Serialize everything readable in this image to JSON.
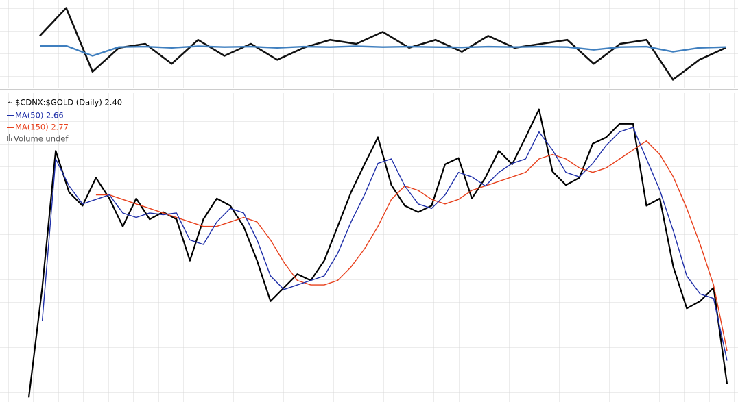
{
  "chart_data": [
    {
      "type": "line",
      "series": [
        {
          "name": null,
          "color": "#111111",
          "values": [
            0.3,
            1.0,
            -0.6,
            0.0,
            0.1,
            -0.4,
            0.2,
            -0.2,
            0.1,
            -0.3,
            0.0,
            0.2,
            0.1,
            0.4,
            0.0,
            0.2,
            -0.1,
            0.3,
            0.0,
            0.1,
            0.2,
            -0.4,
            0.1,
            0.2,
            -0.8,
            -0.3,
            0.0
          ]
        },
        {
          "name": null,
          "color": "#3f7fbf",
          "values": [
            0.05,
            0.05,
            -0.2,
            0.02,
            0.03,
            0.0,
            0.04,
            0.02,
            0.03,
            0.0,
            0.03,
            0.02,
            0.04,
            0.02,
            0.03,
            0.02,
            0.01,
            0.03,
            0.02,
            0.03,
            0.02,
            -0.05,
            0.02,
            0.03,
            -0.1,
            0.0,
            0.02
          ]
        }
      ],
      "ylim": [
        -1,
        1.2
      ]
    },
    {
      "type": "line",
      "title": "$CDNX:$GOLD (Daily) 2.40",
      "series": [
        {
          "name": "MA(50) 2.66",
          "color": "#1f2fa8",
          "values": [
            null,
            3.1,
            4.9,
            4.6,
            4.4,
            4.45,
            4.5,
            4.3,
            4.25,
            4.3,
            4.28,
            4.3,
            4.0,
            3.95,
            4.2,
            4.35,
            4.3,
            4.0,
            3.6,
            3.45,
            3.5,
            3.55,
            3.6,
            3.85,
            4.2,
            4.5,
            4.85,
            4.9,
            4.6,
            4.4,
            4.35,
            4.5,
            4.75,
            4.7,
            4.6,
            4.75,
            4.85,
            4.9,
            5.2,
            5.0,
            4.75,
            4.7,
            4.85,
            5.05,
            5.2,
            5.25,
            4.9,
            4.55,
            4.1,
            3.6,
            3.4,
            3.35,
            2.66
          ]
        },
        {
          "name": "MA(150) 2.77",
          "color": "#e8401c",
          "values": [
            null,
            null,
            null,
            null,
            null,
            4.5,
            4.5,
            4.45,
            4.4,
            4.35,
            4.3,
            4.25,
            4.2,
            4.15,
            4.15,
            4.2,
            4.25,
            4.2,
            4.0,
            3.75,
            3.55,
            3.5,
            3.5,
            3.55,
            3.7,
            3.9,
            4.15,
            4.45,
            4.6,
            4.55,
            4.45,
            4.4,
            4.45,
            4.55,
            4.6,
            4.65,
            4.7,
            4.75,
            4.9,
            4.95,
            4.9,
            4.8,
            4.75,
            4.8,
            4.9,
            5.0,
            5.1,
            4.95,
            4.7,
            4.35,
            3.95,
            3.5,
            2.77
          ]
        },
        {
          "name": null,
          "color": "#000000",
          "values": [
            2.25,
            3.47,
            4.99,
            4.53,
            4.38,
            4.69,
            4.46,
            4.15,
            4.46,
            4.23,
            4.31,
            4.23,
            3.77,
            4.23,
            4.46,
            4.38,
            4.15,
            3.77,
            3.32,
            3.47,
            3.62,
            3.55,
            3.77,
            4.15,
            4.53,
            4.84,
            5.14,
            4.61,
            4.38,
            4.31,
            4.38,
            4.84,
            4.91,
            4.46,
            4.69,
            4.99,
            4.84,
            5.14,
            5.45,
            4.76,
            4.61,
            4.69,
            5.07,
            5.14,
            5.29,
            5.29,
            4.38,
            4.46,
            3.7,
            3.24,
            3.32,
            3.47,
            2.4
          ]
        }
      ],
      "annotations": [
        "Volume undef"
      ],
      "ylim": [
        2.2,
        5.6
      ]
    }
  ]
}
